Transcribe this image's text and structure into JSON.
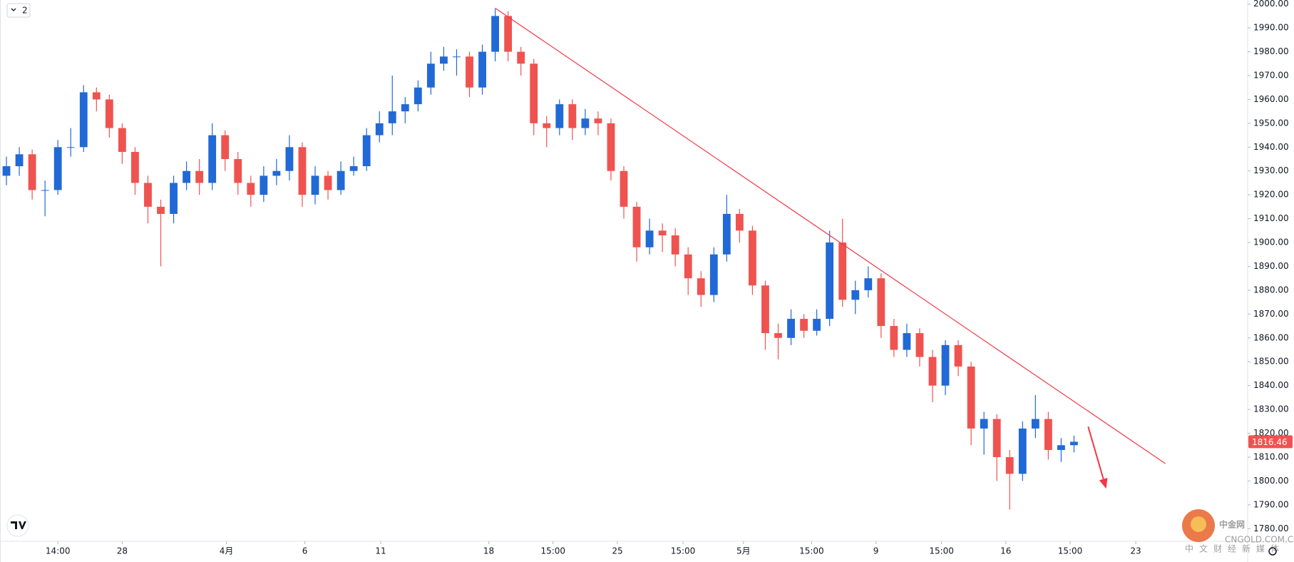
{
  "chart_data": {
    "type": "candlestick",
    "up_color": "#2169d6",
    "down_color": "#ef5350",
    "open": [
      1928,
      1932,
      1937,
      1922,
      1922,
      1940,
      1940,
      1963,
      1960,
      1948,
      1938,
      1925,
      1915,
      1912,
      1925,
      1930,
      1925,
      1945,
      1935,
      1925,
      1920,
      1928,
      1930,
      1940,
      1920,
      1928,
      1922,
      1930,
      1932,
      1945,
      1950,
      1955,
      1958,
      1965,
      1975,
      1978,
      1978,
      1965,
      1980,
      1995,
      1980,
      1975,
      1950,
      1948,
      1958,
      1948,
      1952,
      1950,
      1930,
      1915,
      1898,
      1905,
      1903,
      1895,
      1885,
      1878,
      1895,
      1912,
      1905,
      1882,
      1862,
      1860,
      1868,
      1863,
      1868,
      1900,
      1876,
      1880,
      1885,
      1865,
      1855,
      1862,
      1852,
      1840,
      1857,
      1848,
      1822,
      1826,
      1810,
      1803,
      1822,
      1826,
      1813,
      1815
    ],
    "high": [
      1936,
      1940,
      1939,
      1926,
      1943,
      1948,
      1966,
      1965,
      1962,
      1950,
      1940,
      1928,
      1918,
      1928,
      1934,
      1935,
      1950,
      1947,
      1938,
      1928,
      1932,
      1935,
      1945,
      1942,
      1932,
      1930,
      1934,
      1936,
      1948,
      1955,
      1970,
      1961,
      1968,
      1980,
      1982,
      1981,
      1980,
      1983,
      1998,
      1997,
      1982,
      1977,
      1953,
      1960,
      1960,
      1956,
      1955,
      1952,
      1932,
      1917,
      1910,
      1908,
      1906,
      1898,
      1888,
      1898,
      1920,
      1914,
      1907,
      1884,
      1866,
      1872,
      1870,
      1872,
      1905,
      1910,
      1884,
      1890,
      1887,
      1868,
      1866,
      1864,
      1855,
      1859,
      1859,
      1850,
      1829,
      1828,
      1813,
      1825,
      1836,
      1829,
      1818,
      1819
    ],
    "low": [
      1924,
      1928,
      1918,
      1911,
      1920,
      1936,
      1938,
      1955,
      1944,
      1933,
      1920,
      1908,
      1890,
      1908,
      1922,
      1920,
      1922,
      1930,
      1920,
      1915,
      1917,
      1924,
      1926,
      1915,
      1916,
      1918,
      1920,
      1928,
      1930,
      1942,
      1945,
      1950,
      1955,
      1962,
      1972,
      1970,
      1961,
      1962,
      1976,
      1976,
      1970,
      1945,
      1940,
      1945,
      1943,
      1945,
      1945,
      1926,
      1910,
      1892,
      1895,
      1896,
      1890,
      1878,
      1873,
      1875,
      1892,
      1900,
      1878,
      1855,
      1851,
      1857,
      1860,
      1861,
      1865,
      1873,
      1870,
      1877,
      1860,
      1852,
      1852,
      1848,
      1833,
      1836,
      1844,
      1815,
      1811,
      1800,
      1788,
      1800,
      1818,
      1809,
      1808,
      1812
    ],
    "close": [
      1932,
      1937,
      1922,
      1922,
      1940,
      1940,
      1963,
      1960,
      1948,
      1938,
      1925,
      1915,
      1912,
      1925,
      1930,
      1925,
      1945,
      1935,
      1925,
      1920,
      1928,
      1930,
      1940,
      1920,
      1928,
      1922,
      1930,
      1932,
      1945,
      1950,
      1955,
      1958,
      1965,
      1975,
      1978,
      1978,
      1965,
      1980,
      1995,
      1980,
      1975,
      1950,
      1948,
      1958,
      1948,
      1952,
      1950,
      1930,
      1915,
      1898,
      1905,
      1903,
      1895,
      1885,
      1878,
      1895,
      1912,
      1905,
      1882,
      1862,
      1860,
      1868,
      1863,
      1868,
      1900,
      1876,
      1880,
      1885,
      1865,
      1855,
      1862,
      1852,
      1840,
      1857,
      1848,
      1822,
      1826,
      1810,
      1803,
      1822,
      1826,
      1813,
      1815,
      1816.46
    ],
    "xlim": [
      0,
      97
    ],
    "xticks": [
      {
        "value": 4.5,
        "label": "14:00"
      },
      {
        "value": 9.5,
        "label": "28"
      },
      {
        "value": 17.6,
        "label": "4月"
      },
      {
        "value": 23.7,
        "label": "6"
      },
      {
        "value": 29.6,
        "label": "11"
      },
      {
        "value": 38,
        "label": "18"
      },
      {
        "value": 43,
        "label": "15:00"
      },
      {
        "value": 48,
        "label": "25"
      },
      {
        "value": 53.1,
        "label": "15:00"
      },
      {
        "value": 57.8,
        "label": "5月"
      },
      {
        "value": 63.1,
        "label": "15:00"
      },
      {
        "value": 68.1,
        "label": "9"
      },
      {
        "value": 73.2,
        "label": "15:00"
      },
      {
        "value": 78.2,
        "label": "16"
      },
      {
        "value": 83.2,
        "label": "15:00"
      },
      {
        "value": 88.3,
        "label": "23"
      }
    ],
    "ylim": [
      1774.7,
      2001.7
    ],
    "yticks": [
      {
        "value": 1780,
        "label": "1780.00"
      },
      {
        "value": 1790,
        "label": "1790.00"
      },
      {
        "value": 1800,
        "label": "1800.00"
      },
      {
        "value": 1810,
        "label": "1810.00"
      },
      {
        "value": 1820,
        "label": "1820.00"
      },
      {
        "value": 1830,
        "label": "1830.00"
      },
      {
        "value": 1840,
        "label": "1840.00"
      },
      {
        "value": 1850,
        "label": "1850.00"
      },
      {
        "value": 1860,
        "label": "1860.00"
      },
      {
        "value": 1870,
        "label": "1870.00"
      },
      {
        "value": 1880,
        "label": "1880.00"
      },
      {
        "value": 1890,
        "label": "1890.00"
      },
      {
        "value": 1900,
        "label": "1900.00"
      },
      {
        "value": 1910,
        "label": "1910.00"
      },
      {
        "value": 1920,
        "label": "1920.00"
      },
      {
        "value": 1930,
        "label": "1930.00"
      },
      {
        "value": 1940,
        "label": "1940.00"
      },
      {
        "value": 1950,
        "label": "1950.00"
      },
      {
        "value": 1960,
        "label": "1960.00"
      },
      {
        "value": 1970,
        "label": "1970.00"
      },
      {
        "value": 1980,
        "label": "1980.00"
      },
      {
        "value": 1990,
        "label": "1990.00"
      },
      {
        "value": 2000,
        "label": "2000.00"
      }
    ],
    "trendline": {
      "x": [
        38.5,
        90.6
      ],
      "y": [
        1998.3,
        1807.3
      ],
      "color": "#f23645"
    },
    "arrow": {
      "x": [
        84.6,
        86.0
      ],
      "y": [
        1822.8,
        1796.8
      ],
      "color": "#f23645"
    },
    "grid": false
  },
  "ui": {
    "interval_button": "2",
    "watermark": {
      "name": "中金网",
      "domain": "CNGOLD.COM.CN",
      "slogan": "中文财经新媒体"
    }
  }
}
